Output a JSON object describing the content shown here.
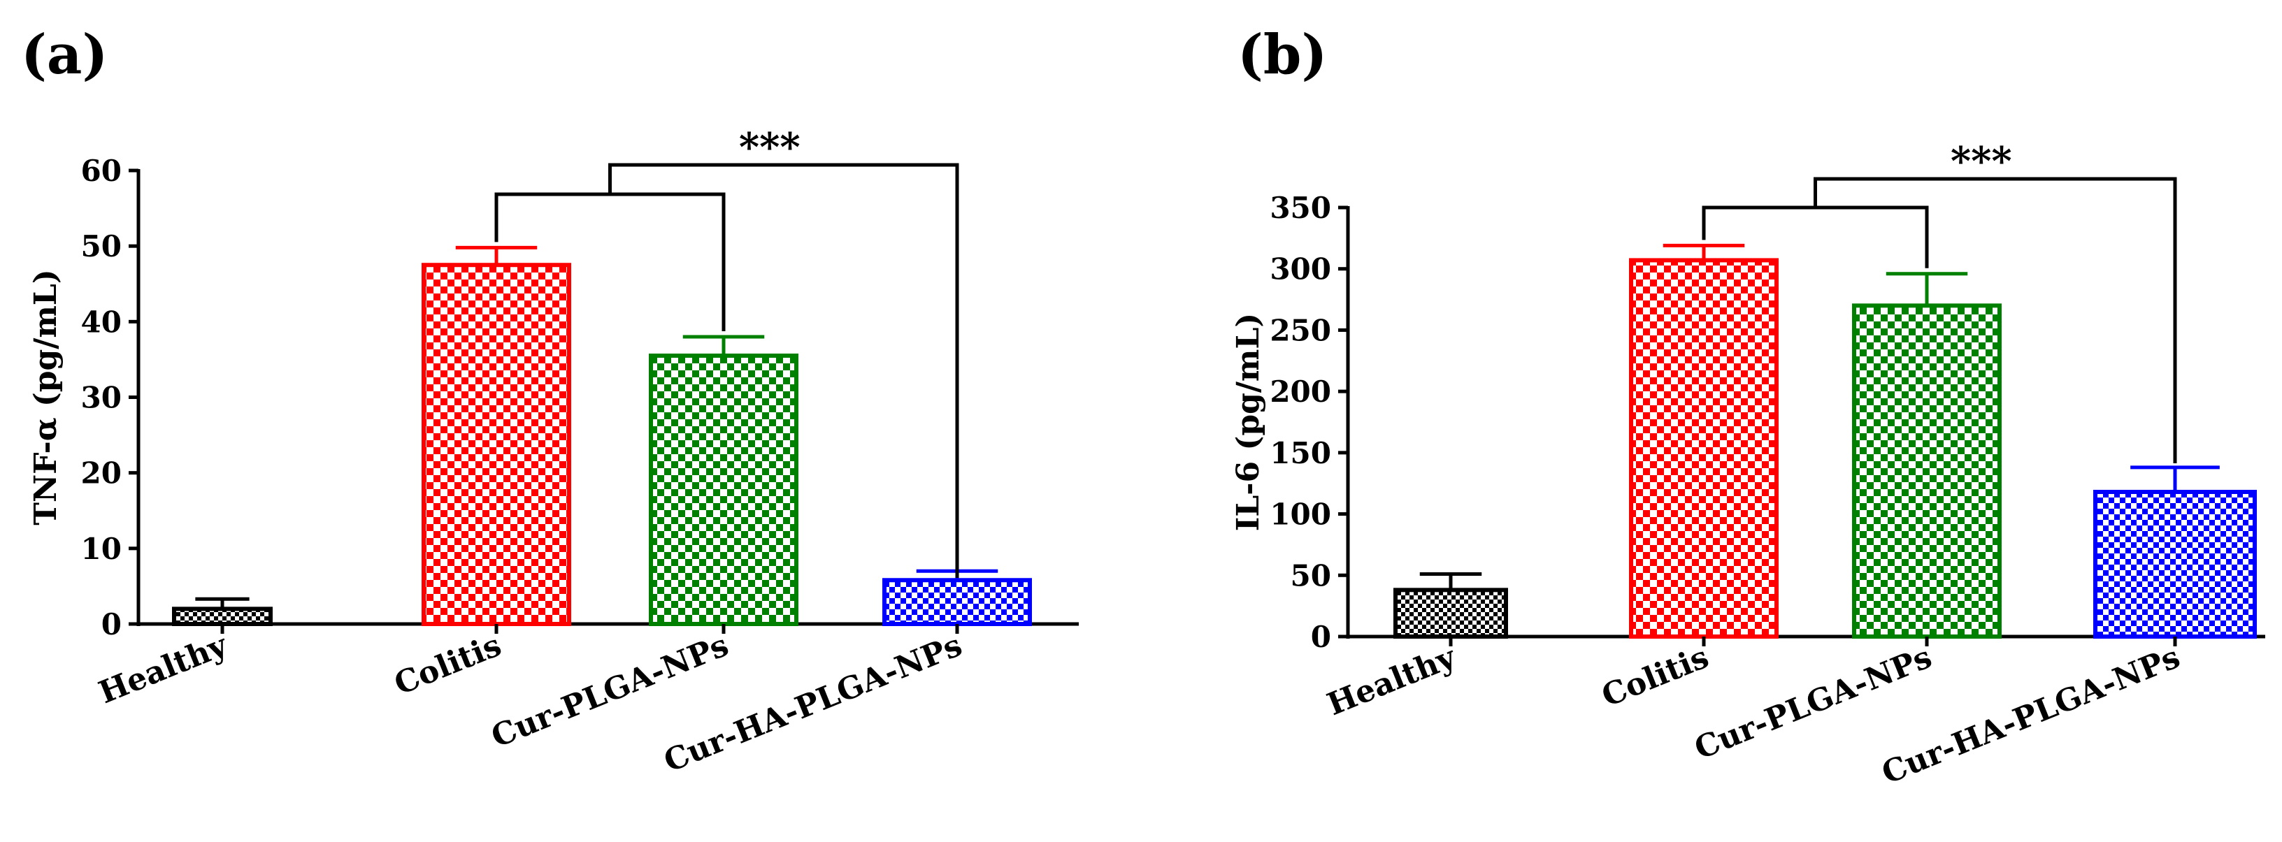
{
  "chart_data": [
    {
      "type": "bar",
      "panel_label": "(a)",
      "ylabel": "TNF-α (pg/mL)",
      "xlabel": "",
      "ylim": [
        0,
        60
      ],
      "yticks": [
        0,
        10,
        20,
        30,
        40,
        50,
        60
      ],
      "categories": [
        "Healthy",
        "Colitis",
        "Cur-PLGA-NPs",
        "Cur-HA-PLGA-NPs"
      ],
      "values": [
        2,
        47.5,
        35.5,
        5.8
      ],
      "errors": [
        1.3,
        2.3,
        2.5,
        1.2
      ],
      "colors": [
        "#000000",
        "#ff0000",
        "#008000",
        "#0000ff"
      ],
      "significance": "***"
    },
    {
      "type": "bar",
      "panel_label": "(b)",
      "ylabel": "IL-6 (pg/mL)",
      "xlabel": "",
      "ylim": [
        0,
        350
      ],
      "yticks": [
        0,
        50,
        100,
        150,
        200,
        250,
        300,
        350
      ],
      "categories": [
        "Healthy",
        "Colitis",
        "Cur-PLGA-NPs",
        "Cur-HA-PLGA-NPs"
      ],
      "values": [
        38,
        307,
        270,
        118
      ],
      "errors": [
        13,
        12,
        26,
        20
      ],
      "colors": [
        "#000000",
        "#ff0000",
        "#008000",
        "#0000ff"
      ],
      "significance": "***"
    }
  ]
}
